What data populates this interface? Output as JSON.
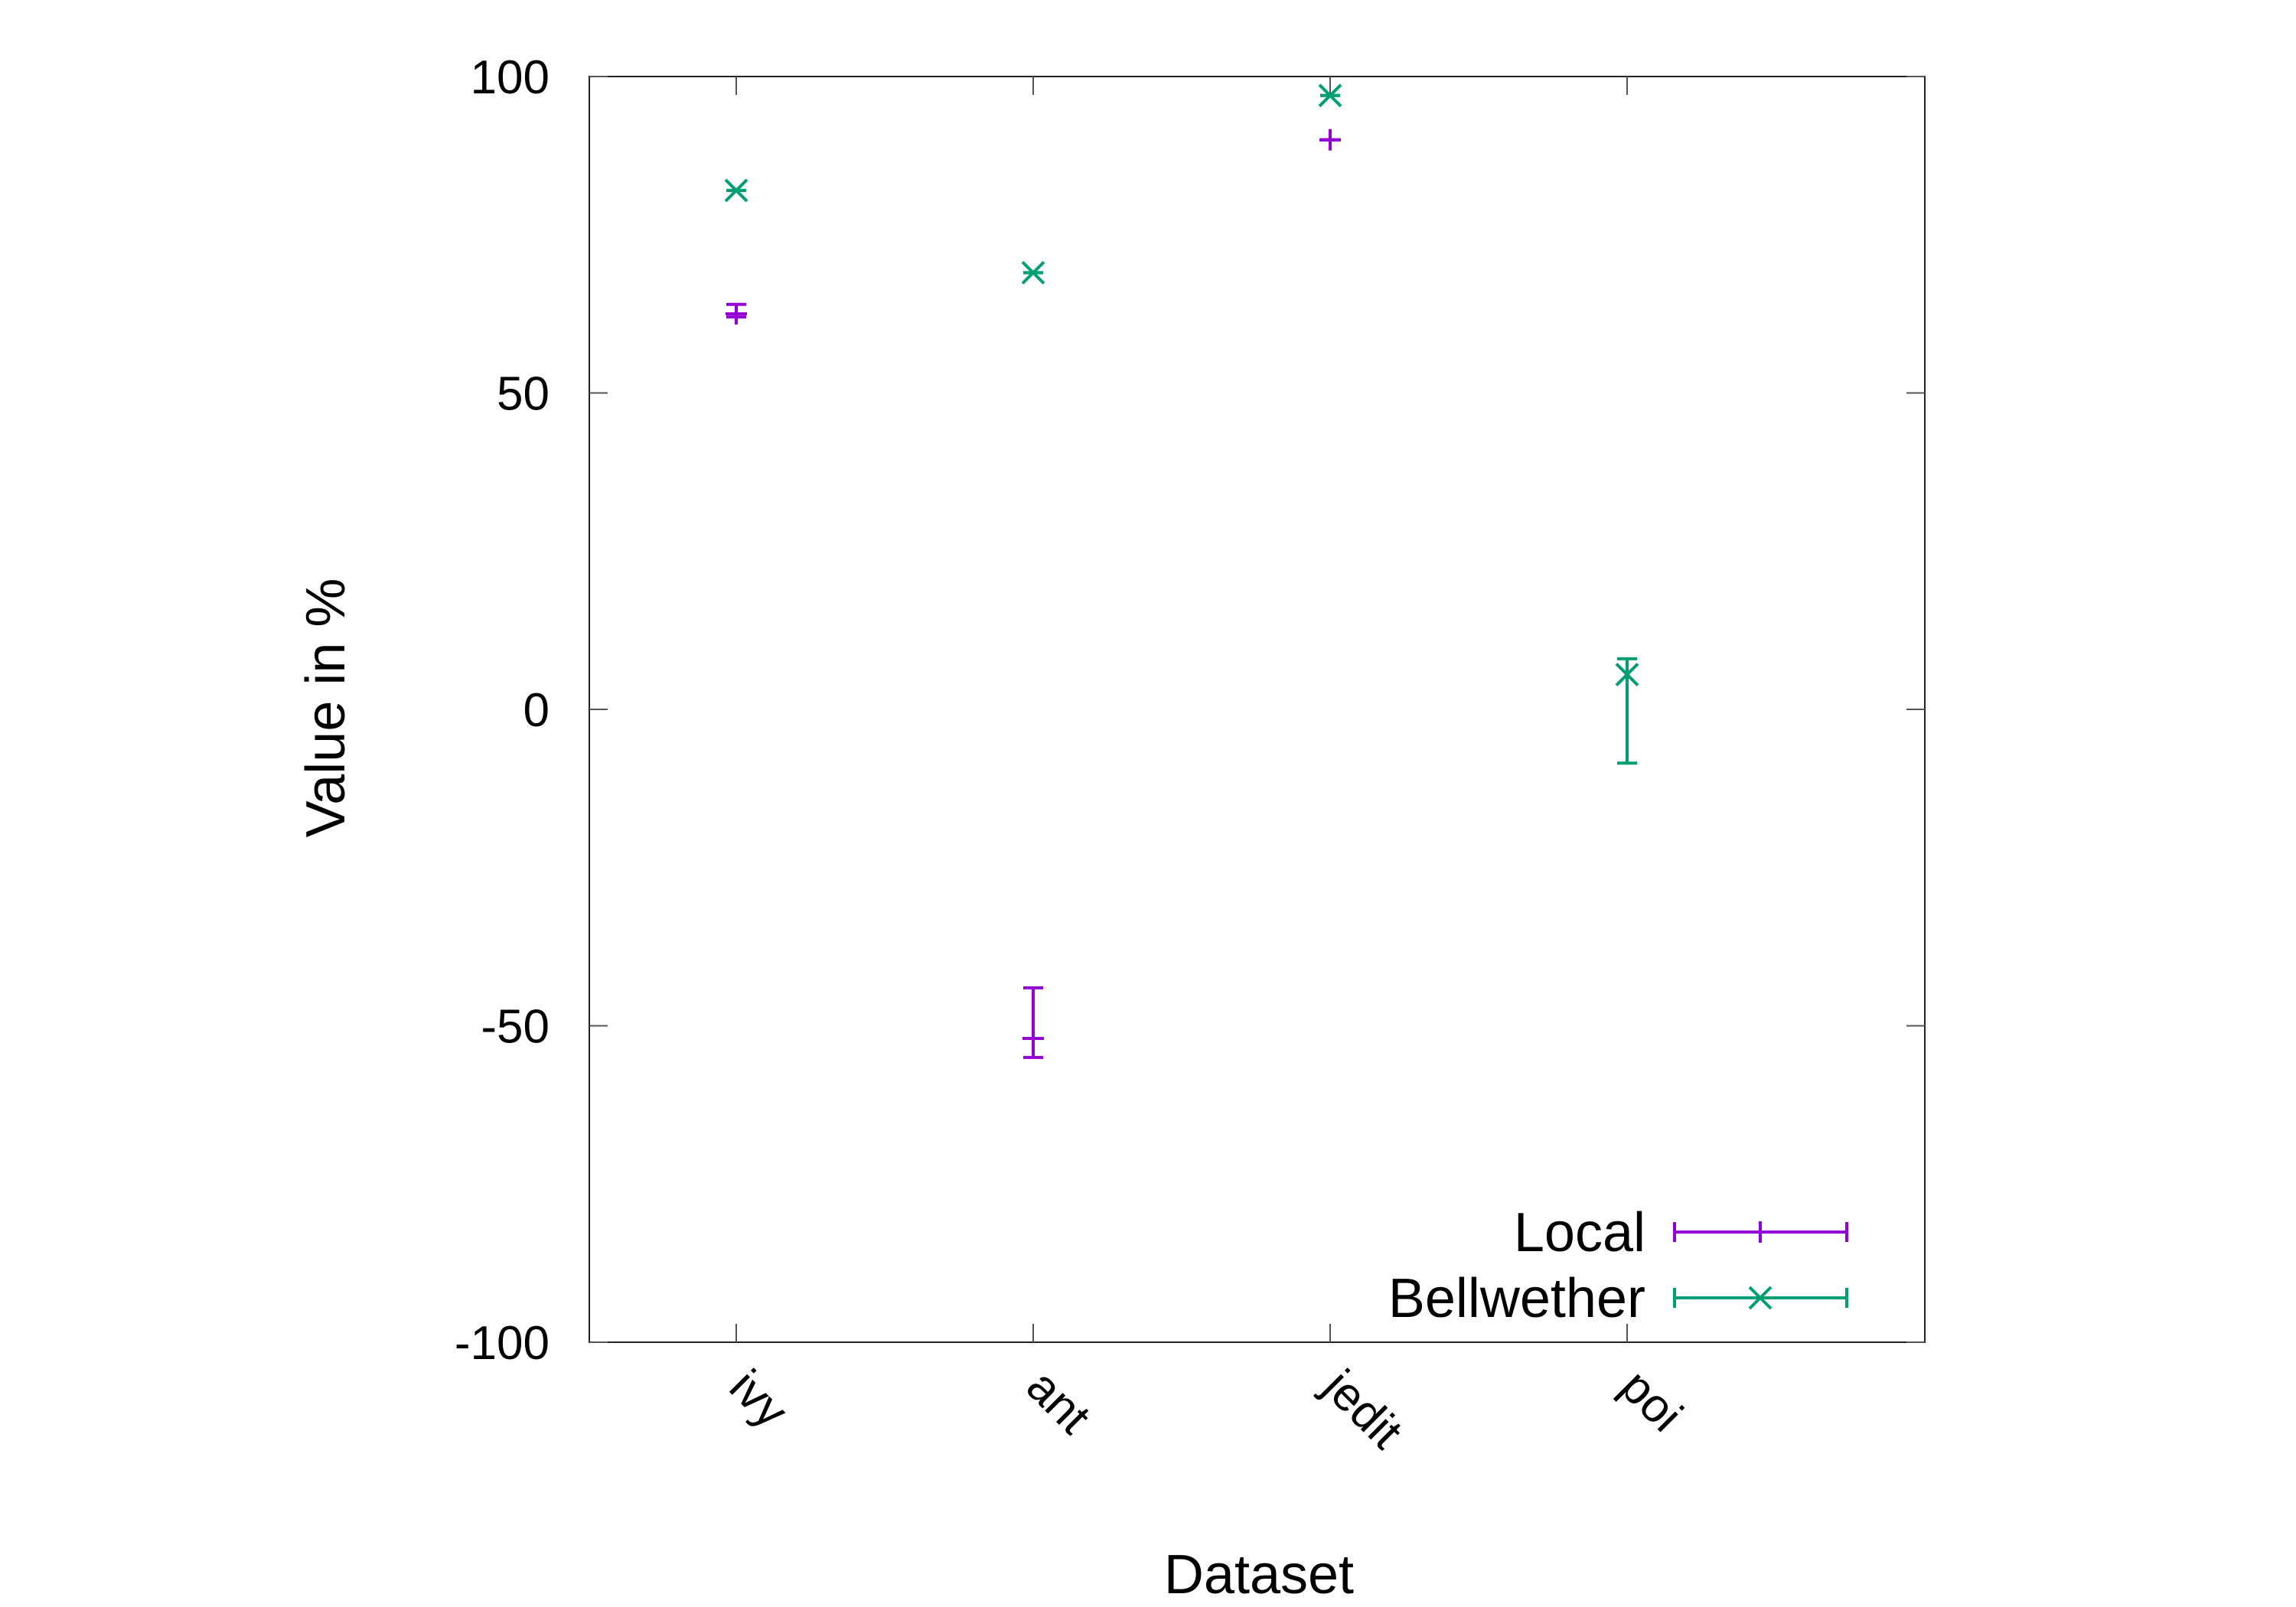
{
  "chart_data": {
    "type": "scatter",
    "title": "",
    "xlabel": "Dataset",
    "ylabel": "Value in %",
    "categories": [
      "ivy",
      "ant",
      "jedit",
      "poi"
    ],
    "ylim": [
      -100,
      100
    ],
    "yticks": [
      -100,
      -50,
      0,
      50,
      100
    ],
    "grid": false,
    "legend_position": "bottom-right",
    "series": [
      {
        "name": "Local",
        "marker": "plus",
        "color": "#9400d3",
        "points": [
          {
            "category": "ivy",
            "value": 62.5,
            "low": 62,
            "high": 64
          },
          {
            "category": "ant",
            "value": -52,
            "low": -55,
            "high": -44
          },
          {
            "category": "jedit",
            "value": 90,
            "low": 90,
            "high": 90
          }
        ]
      },
      {
        "name": "Bellwether",
        "marker": "cross",
        "color": "#009e73",
        "points": [
          {
            "category": "ivy",
            "value": 82,
            "low": 82,
            "high": 82
          },
          {
            "category": "ant",
            "value": 69,
            "low": 69,
            "high": 69
          },
          {
            "category": "jedit",
            "value": 97,
            "low": 97,
            "high": 97
          },
          {
            "category": "poi",
            "value": 5.5,
            "low": -8.5,
            "high": 8
          }
        ]
      }
    ]
  }
}
